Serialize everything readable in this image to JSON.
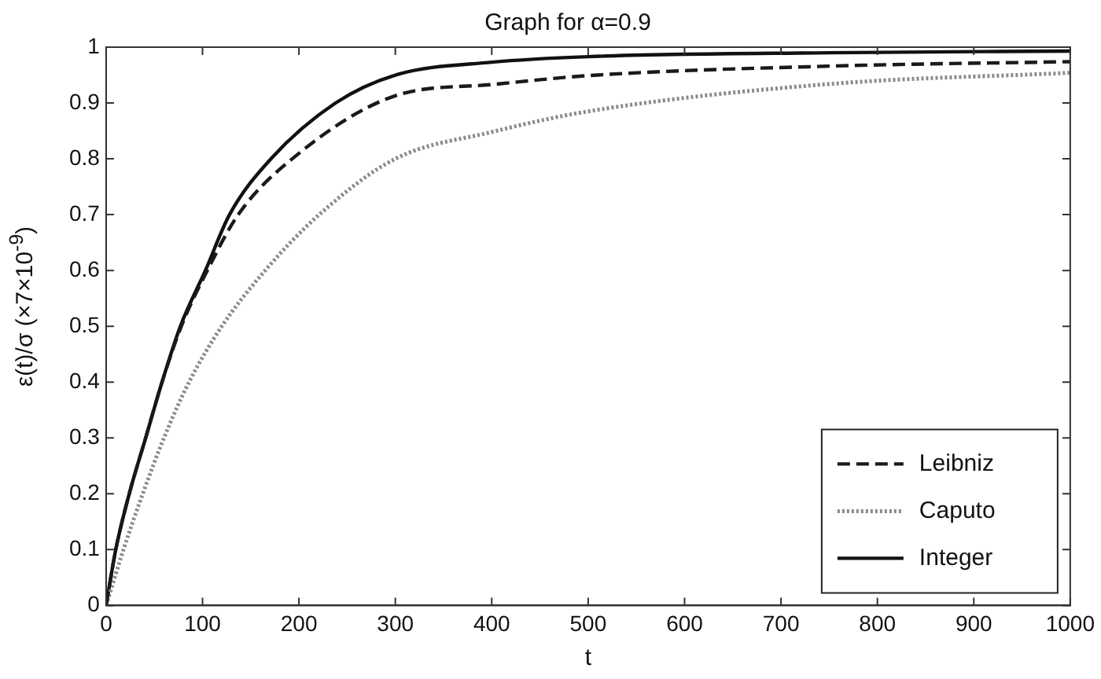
{
  "chart_data": {
    "type": "line",
    "title": "Graph for α=0.9",
    "xlabel": "t",
    "ylabel": "ε(t)/σ (×7×10$^{-9}$)",
    "xlim": [
      0,
      1000
    ],
    "xticks": [
      0,
      100,
      200,
      300,
      400,
      500,
      600,
      700,
      800,
      900,
      1000
    ],
    "ylim": [
      0,
      1
    ],
    "yticks": [
      0,
      0.1,
      0.2,
      0.3,
      0.4,
      0.5,
      0.6,
      0.7,
      0.8,
      0.9,
      1
    ],
    "grid": false,
    "legend": "bottom right",
    "marker": "none",
    "series": [
      {
        "name": "Leibniz",
        "color": "#1a1a1a",
        "line_style": "dashed",
        "x": [
          0,
          10,
          24,
          41,
          58,
          78,
          105,
          137,
          193,
          300,
          400,
          500,
          750,
          1000
        ],
        "values": [
          0,
          0.1,
          0.2,
          0.3,
          0.4,
          0.5,
          0.6,
          0.7,
          0.8,
          0.913,
          0.933,
          0.949,
          0.966,
          0.974
        ]
      },
      {
        "name": "Caputo",
        "color": "#8a8a8a",
        "line_style": "dotted",
        "x": [
          0,
          18,
          38,
          60,
          86,
          120,
          165,
          221,
          300,
          400,
          500,
          750,
          1000
        ],
        "values": [
          0,
          0.1,
          0.2,
          0.3,
          0.4,
          0.5,
          0.6,
          0.7,
          0.8,
          0.848,
          0.885,
          0.934,
          0.954
        ]
      },
      {
        "name": "Integer",
        "color": "#111111",
        "line_style": "solid",
        "x": [
          0,
          10,
          24,
          41,
          58,
          77,
          103,
          128,
          171,
          238,
          300,
          400,
          500,
          750,
          1000
        ],
        "values": [
          0,
          0.1,
          0.2,
          0.3,
          0.4,
          0.5,
          0.6,
          0.7,
          0.8,
          0.9,
          0.95,
          0.973,
          0.983,
          0.99,
          0.993
        ]
      }
    ]
  }
}
